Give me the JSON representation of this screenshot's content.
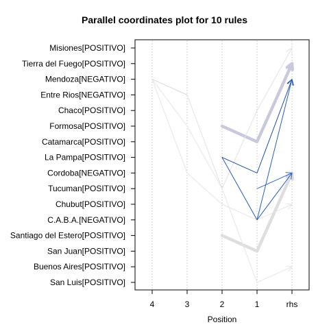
{
  "chart_data": {
    "type": "parallel_coordinates",
    "title": "Parallel coordinates plot for 10 rules",
    "xlabel": "Position",
    "x_positions": [
      "4",
      "3",
      "2",
      "1",
      "rhs"
    ],
    "y_items": [
      "Misiones[POSITIVO]",
      "Tierra del Fuego[POSITIVO]",
      "Mendoza[NEGATIVO]",
      "Entre Rios[NEGATIVO]",
      "Chaco[POSITIVO]",
      "Formosa[POSITIVO]",
      "Catamarca[POSITIVO]",
      "La Pampa[POSITIVO]",
      "Cordoba[NEGATIVO]",
      "Tucuman[POSITIVO]",
      "Chubut[POSITIVO]",
      "C.A.B.A.[NEGATIVO]",
      "Santiago del Estero[POSITIVO]",
      "San Juan[POSITIVO]",
      "Buenos Aires[POSITIVO]",
      "San Luis[POSITIVO]"
    ],
    "rules": [
      {
        "path": [
          null,
          null,
          "Formosa[POSITIVO]",
          "Catamarca[POSITIVO]",
          "Tierra del Fuego[POSITIVO]"
        ],
        "color": "#c9c9dd",
        "width": 4.5
      },
      {
        "path": [
          null,
          null,
          "Santiago del Estero[POSITIVO]",
          "San Juan[POSITIVO]",
          "Cordoba[NEGATIVO]"
        ],
        "color": "#dedede",
        "width": 4.5
      },
      {
        "path": [
          "Mendoza[NEGATIVO]",
          "Formosa[POSITIVO]",
          "Tucuman[POSITIVO]",
          "San Luis[POSITIVO]",
          "Buenos Aires[POSITIVO]"
        ],
        "color": "#e6e6e6",
        "width": 1
      },
      {
        "path": [
          "Mendoza[NEGATIVO]",
          "Cordoba[NEGATIVO]",
          "Chubut[POSITIVO]",
          "C.A.B.A.[NEGATIVO]",
          "Chubut[POSITIVO]"
        ],
        "color": "#e6e6e6",
        "width": 1
      },
      {
        "path": [
          null,
          "Entre Rios[NEGATIVO]",
          "Tucuman[POSITIVO]",
          "Chaco[POSITIVO]",
          "Misiones[POSITIVO]"
        ],
        "color": "#e2e2e2",
        "width": 1
      },
      {
        "path": [
          "Mendoza[NEGATIVO]",
          "Entre Rios[NEGATIVO]",
          null,
          null,
          null
        ],
        "color": "#d8d8d8",
        "width": 1
      },
      {
        "path": [
          null,
          null,
          "La Pampa[POSITIVO]",
          "Cordoba[NEGATIVO]",
          "Mendoza[NEGATIVO]"
        ],
        "color": "#1f4fa0",
        "width": 1
      },
      {
        "path": [
          null,
          null,
          null,
          "C.A.B.A.[NEGATIVO]",
          "Mendoza[NEGATIVO]"
        ],
        "color": "#2a5cb3",
        "width": 1
      },
      {
        "path": [
          null,
          null,
          "La Pampa[POSITIVO]",
          "C.A.B.A.[NEGATIVO]",
          "Cordoba[NEGATIVO]"
        ],
        "color": "#2a5cb3",
        "width": 1
      },
      {
        "path": [
          null,
          null,
          null,
          "Tucuman[POSITIVO]",
          "Cordoba[NEGATIVO]"
        ],
        "color": "#3a6cc6",
        "width": 1
      }
    ]
  }
}
